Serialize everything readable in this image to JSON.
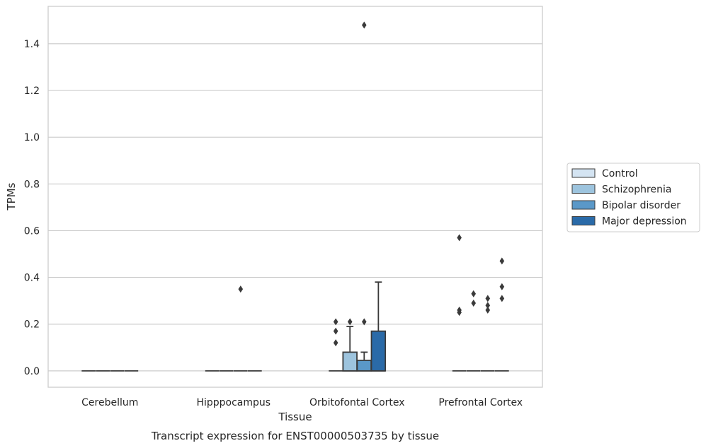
{
  "chart_data": {
    "type": "box",
    "title": "",
    "caption": "Transcript expression for ENST00000503735 by tissue",
    "xlabel": "Tissue",
    "ylabel": "TPMs",
    "ylim": [
      -0.07,
      1.56
    ],
    "yticks": [
      0.0,
      0.2,
      0.4,
      0.6,
      0.8,
      1.0,
      1.2,
      1.4
    ],
    "ytick_labels": [
      "0.0",
      "0.2",
      "0.4",
      "0.6",
      "0.8",
      "1.0",
      "1.2",
      "1.4"
    ],
    "categories": [
      "Cerebellum",
      "Hipppocampus",
      "Orbitofontal Cortex",
      "Prefrontal Cortex"
    ],
    "grid": "horizontal",
    "legend_position": "right",
    "series": [
      {
        "name": "Control",
        "color": "#d4e4f2",
        "boxes": [
          {
            "category": "Cerebellum",
            "whislo": 0,
            "q1": 0,
            "med": 0,
            "q3": 0,
            "whishi": 0,
            "fliers": []
          },
          {
            "category": "Hipppocampus",
            "whislo": 0,
            "q1": 0,
            "med": 0,
            "q3": 0,
            "whishi": 0,
            "fliers": []
          },
          {
            "category": "Orbitofontal Cortex",
            "whislo": 0,
            "q1": 0,
            "med": 0,
            "q3": 0,
            "whishi": 0,
            "fliers": [
              0.12,
              0.17,
              0.21
            ]
          },
          {
            "category": "Prefrontal Cortex",
            "whislo": 0,
            "q1": 0,
            "med": 0,
            "q3": 0,
            "whishi": 0,
            "fliers": [
              0.25,
              0.26,
              0.57
            ]
          }
        ]
      },
      {
        "name": "Schizophrenia",
        "color": "#9dc4de",
        "boxes": [
          {
            "category": "Cerebellum",
            "whislo": 0,
            "q1": 0,
            "med": 0,
            "q3": 0,
            "whishi": 0,
            "fliers": []
          },
          {
            "category": "Hipppocampus",
            "whislo": 0,
            "q1": 0,
            "med": 0,
            "q3": 0,
            "whishi": 0,
            "fliers": []
          },
          {
            "category": "Orbitofontal Cortex",
            "whislo": 0,
            "q1": 0,
            "med": 0,
            "q3": 0.08,
            "whishi": 0.19,
            "fliers": [
              0.21
            ]
          },
          {
            "category": "Prefrontal Cortex",
            "whislo": 0,
            "q1": 0,
            "med": 0,
            "q3": 0,
            "whishi": 0,
            "fliers": [
              0.29,
              0.33
            ]
          }
        ]
      },
      {
        "name": "Bipolar disorder",
        "color": "#5a98c8",
        "boxes": [
          {
            "category": "Cerebellum",
            "whislo": 0,
            "q1": 0,
            "med": 0,
            "q3": 0,
            "whishi": 0,
            "fliers": []
          },
          {
            "category": "Hipppocampus",
            "whislo": 0,
            "q1": 0,
            "med": 0,
            "q3": 0,
            "whishi": 0,
            "fliers": [
              0.35
            ]
          },
          {
            "category": "Orbitofontal Cortex",
            "whislo": 0,
            "q1": 0,
            "med": 0,
            "q3": 0.045,
            "whishi": 0.08,
            "fliers": [
              0.21,
              1.48
            ]
          },
          {
            "category": "Prefrontal Cortex",
            "whislo": 0,
            "q1": 0,
            "med": 0,
            "q3": 0,
            "whishi": 0,
            "fliers": [
              0.26,
              0.28,
              0.31
            ]
          }
        ]
      },
      {
        "name": "Major depression",
        "color": "#2a6aa8",
        "boxes": [
          {
            "category": "Cerebellum",
            "whislo": 0,
            "q1": 0,
            "med": 0,
            "q3": 0,
            "whishi": 0,
            "fliers": []
          },
          {
            "category": "Hipppocampus",
            "whislo": 0,
            "q1": 0,
            "med": 0,
            "q3": 0,
            "whishi": 0,
            "fliers": []
          },
          {
            "category": "Orbitofontal Cortex",
            "whislo": 0,
            "q1": 0,
            "med": 0,
            "q3": 0.17,
            "whishi": 0.38,
            "fliers": []
          },
          {
            "category": "Prefrontal Cortex",
            "whislo": 0,
            "q1": 0,
            "med": 0,
            "q3": 0,
            "whishi": 0,
            "fliers": [
              0.31,
              0.36,
              0.47
            ]
          }
        ]
      }
    ]
  }
}
